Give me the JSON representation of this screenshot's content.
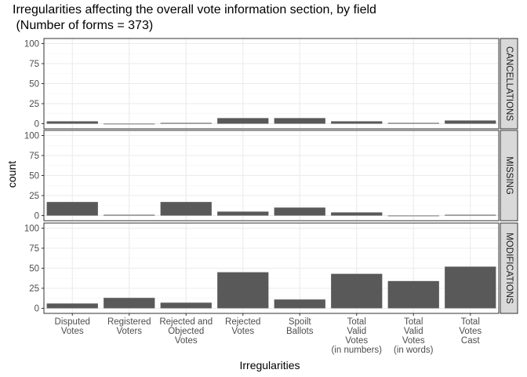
{
  "chart_data": {
    "type": "bar",
    "title_line1": "Irregularities affecting the overall vote information section, by field",
    "title_line2": " (Number of forms = 373)",
    "xlabel": "Irregularities",
    "ylabel": "count",
    "ylim": [
      0,
      100
    ],
    "yticks": [
      0,
      25,
      50,
      75,
      100
    ],
    "categories": [
      [
        "Disputed",
        "Votes"
      ],
      [
        "Registered",
        "Voters"
      ],
      [
        "Rejected and",
        "Objected",
        "Votes"
      ],
      [
        "Rejected",
        "Votes"
      ],
      [
        "Spoilt",
        "Ballots"
      ],
      [
        "Total",
        "Valid",
        "Votes",
        "(in numbers)"
      ],
      [
        "Total",
        "Valid",
        "Votes",
        "(in words)"
      ],
      [
        "Total",
        "Votes",
        "Cast"
      ]
    ],
    "facets": [
      {
        "name": "CANCELLATIONS",
        "values": [
          3,
          0,
          1,
          7,
          7,
          3,
          1,
          4
        ]
      },
      {
        "name": "MISSING",
        "values": [
          17,
          1,
          17,
          5,
          10,
          4,
          0,
          1
        ]
      },
      {
        "name": "MODIFICATIONS",
        "values": [
          6,
          13,
          7,
          45,
          11,
          43,
          34,
          52
        ]
      }
    ],
    "grid": true,
    "bar_color": "#595959",
    "strip_color": "#d9d9d9"
  }
}
